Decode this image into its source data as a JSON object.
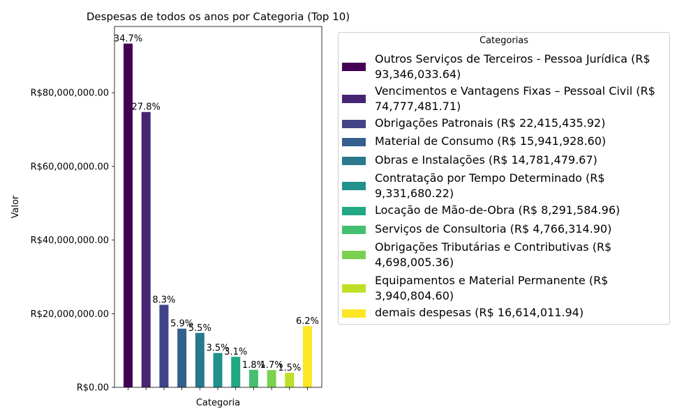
{
  "chart_data": {
    "type": "bar",
    "title": "Despesas de todos os anos por Categoria (Top 10)",
    "xlabel": "Categoria",
    "ylabel": "Valor",
    "ylim": [
      0,
      98000000
    ],
    "yticks": [
      {
        "value": 0,
        "label": "R$0.00"
      },
      {
        "value": 20000000,
        "label": "R$20,000,000.00"
      },
      {
        "value": 40000000,
        "label": "R$40,000,000.00"
      },
      {
        "value": 60000000,
        "label": "R$60,000,000.00"
      },
      {
        "value": 80000000,
        "label": "R$80,000,000.00"
      }
    ],
    "grid": false,
    "legend_title": "Categorias",
    "legend_position": "right",
    "bars": [
      {
        "legend": "Outros Serviços de Terceiros - Pessoa Jurídica (R$ 93,346,033.64)",
        "value": 93346033.64,
        "pct_label": "34.7%",
        "color": "#440154"
      },
      {
        "legend": "Vencimentos e Vantagens Fixas – Pessoal Civil (R$ 74,777,481.71)",
        "value": 74777481.71,
        "pct_label": "27.8%",
        "color": "#482475"
      },
      {
        "legend": "Obrigações Patronais (R$ 22,415,435.92)",
        "value": 22415435.92,
        "pct_label": "8.3%",
        "color": "#414487"
      },
      {
        "legend": "Material de Consumo (R$ 15,941,928.60)",
        "value": 15941928.6,
        "pct_label": "5.9%",
        "color": "#355f8d"
      },
      {
        "legend": "Obras e Instalações (R$ 14,781,479.67)",
        "value": 14781479.67,
        "pct_label": "5.5%",
        "color": "#2a788e"
      },
      {
        "legend": "Contratação por Tempo Determinado (R$ 9,331,680.22)",
        "value": 9331680.22,
        "pct_label": "3.5%",
        "color": "#21918c"
      },
      {
        "legend": "Locação de Mão-de-Obra (R$ 8,291,584.96)",
        "value": 8291584.96,
        "pct_label": "3.1%",
        "color": "#22a884"
      },
      {
        "legend": "Serviços de Consultoria (R$ 4,766,314.90)",
        "value": 4766314.9,
        "pct_label": "1.8%",
        "color": "#44bf70"
      },
      {
        "legend": "Obrigações Tributárias e Contributivas (R$ 4,698,005.36)",
        "value": 4698005.36,
        "pct_label": "1.7%",
        "color": "#7ad151"
      },
      {
        "legend": "Equipamentos e Material Permanente (R$ 3,940,804.60)",
        "value": 3940804.6,
        "pct_label": "1.5%",
        "color": "#bddf26"
      },
      {
        "legend": "demais despesas (R$ 16,614,011.94)",
        "value": 16614011.94,
        "pct_label": "6.2%",
        "color": "#fde725"
      }
    ]
  }
}
